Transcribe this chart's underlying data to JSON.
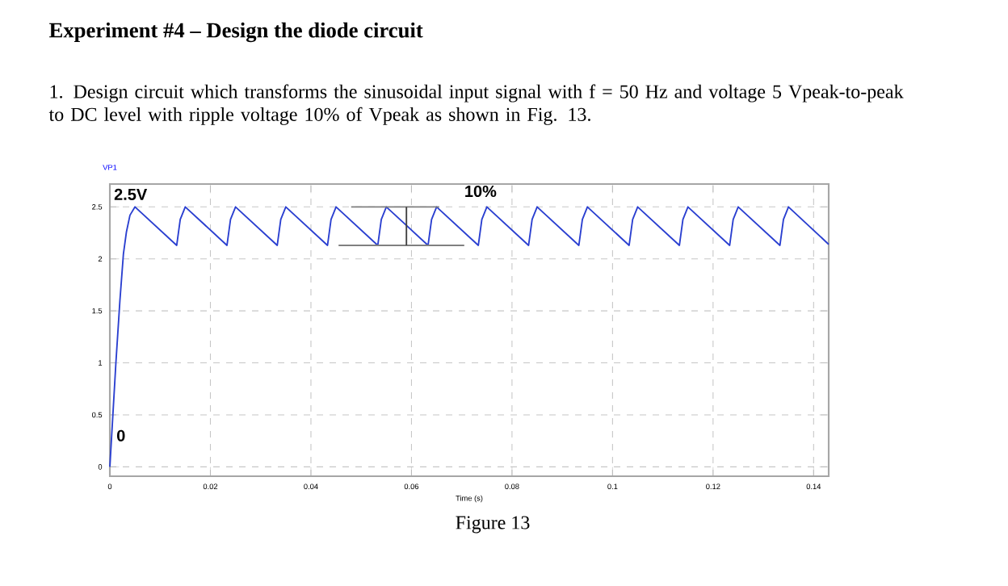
{
  "chart_data": {
    "type": "line",
    "title": "Experiment #4 – Design the diode circuit",
    "xlabel": "Time (s)",
    "ylabel": "VP1",
    "annotations": [
      "1. Design circuit which transforms the sinusoidal input signal with f = 50 Hz and voltage 5 Vpeak-to-peak to DC level with ripple voltage 10% of Vpeak as shown in Fig. 13.",
      "Figure 13",
      "2.5V",
      "0",
      "10%"
    ],
    "series": [
      {
        "color": "#2a3fd0",
        "x": [
          0,
          0.0006,
          0.0012,
          0.002,
          0.0027,
          0.0033,
          0.004,
          0.005,
          0.0133,
          0.014,
          0.015,
          0.0233,
          0.024,
          0.025,
          0.0333,
          0.034,
          0.035,
          0.0433,
          0.044,
          0.045,
          0.0533,
          0.054,
          0.055,
          0.0633,
          0.064,
          0.065,
          0.0733,
          0.074,
          0.075,
          0.0833,
          0.084,
          0.085,
          0.0933,
          0.094,
          0.095,
          0.1033,
          0.104,
          0.105,
          0.1133,
          0.114,
          0.115,
          0.1233,
          0.124,
          0.125,
          0.1333,
          0.134,
          0.135,
          0.143
        ],
        "values": [
          0,
          0.5,
          1.0,
          1.6,
          2.05,
          2.26,
          2.42,
          2.5,
          2.13,
          2.38,
          2.5,
          2.13,
          2.38,
          2.5,
          2.13,
          2.38,
          2.5,
          2.13,
          2.38,
          2.5,
          2.13,
          2.38,
          2.5,
          2.13,
          2.38,
          2.5,
          2.13,
          2.38,
          2.5,
          2.13,
          2.38,
          2.5,
          2.13,
          2.38,
          2.5,
          2.13,
          2.38,
          2.5,
          2.13,
          2.38,
          2.5,
          2.13,
          2.38,
          2.5,
          2.13,
          2.38,
          2.5,
          2.14
        ]
      },
      {
        "color": "#808080",
        "x": [
          0.048,
          0.0655
        ],
        "values": [
          2.5,
          2.5
        ]
      },
      {
        "color": "#808080",
        "x": [
          0.0455,
          0.0705
        ],
        "values": [
          2.13,
          2.13
        ]
      },
      {
        "color": "#404040",
        "x": [
          0.059,
          0.059
        ],
        "values": [
          2.13,
          2.5
        ]
      }
    ],
    "xlim": [
      0,
      0.143
    ],
    "ylim": [
      -0.09,
      2.72
    ],
    "xticks": [
      0,
      0.02,
      0.04,
      0.06,
      0.08,
      0.1,
      0.12,
      0.14
    ],
    "yticks": [
      0,
      0.5,
      1,
      1.5,
      2,
      2.5
    ],
    "grid": true,
    "marker": "none",
    "line_style": "solid"
  }
}
